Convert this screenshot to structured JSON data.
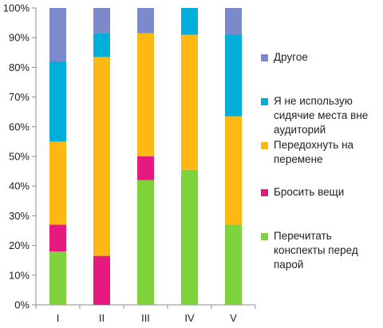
{
  "chart_data": {
    "type": "bar",
    "stacked": true,
    "categories": [
      "I",
      "II",
      "III",
      "IV",
      "V"
    ],
    "ylim": [
      0,
      100
    ],
    "yticks": [
      "0%",
      "10%",
      "20%",
      "30%",
      "40%",
      "50%",
      "60%",
      "70%",
      "80%",
      "90%",
      "100%"
    ],
    "grid": false,
    "legend_position": "right",
    "series": [
      {
        "name": "Перечитать конспекты перед парой",
        "color": "#7ED23C",
        "values": [
          18,
          0,
          42,
          45.5,
          27
        ]
      },
      {
        "name": "Бросить вещи",
        "color": "#E8197E",
        "values": [
          9,
          16.5,
          8,
          0,
          0
        ]
      },
      {
        "name": "Передохнуть на перемене",
        "color": "#FDB813",
        "values": [
          28,
          67,
          41.5,
          45.5,
          36.5
        ]
      },
      {
        "name": "Я не использую сидячие места вне аудиторий",
        "color": "#00AEDB",
        "values": [
          27,
          8,
          0,
          9,
          27.5
        ]
      },
      {
        "name": "Другое",
        "color": "#7C89CA",
        "values": [
          18,
          8.5,
          8.5,
          0,
          9
        ]
      }
    ]
  }
}
